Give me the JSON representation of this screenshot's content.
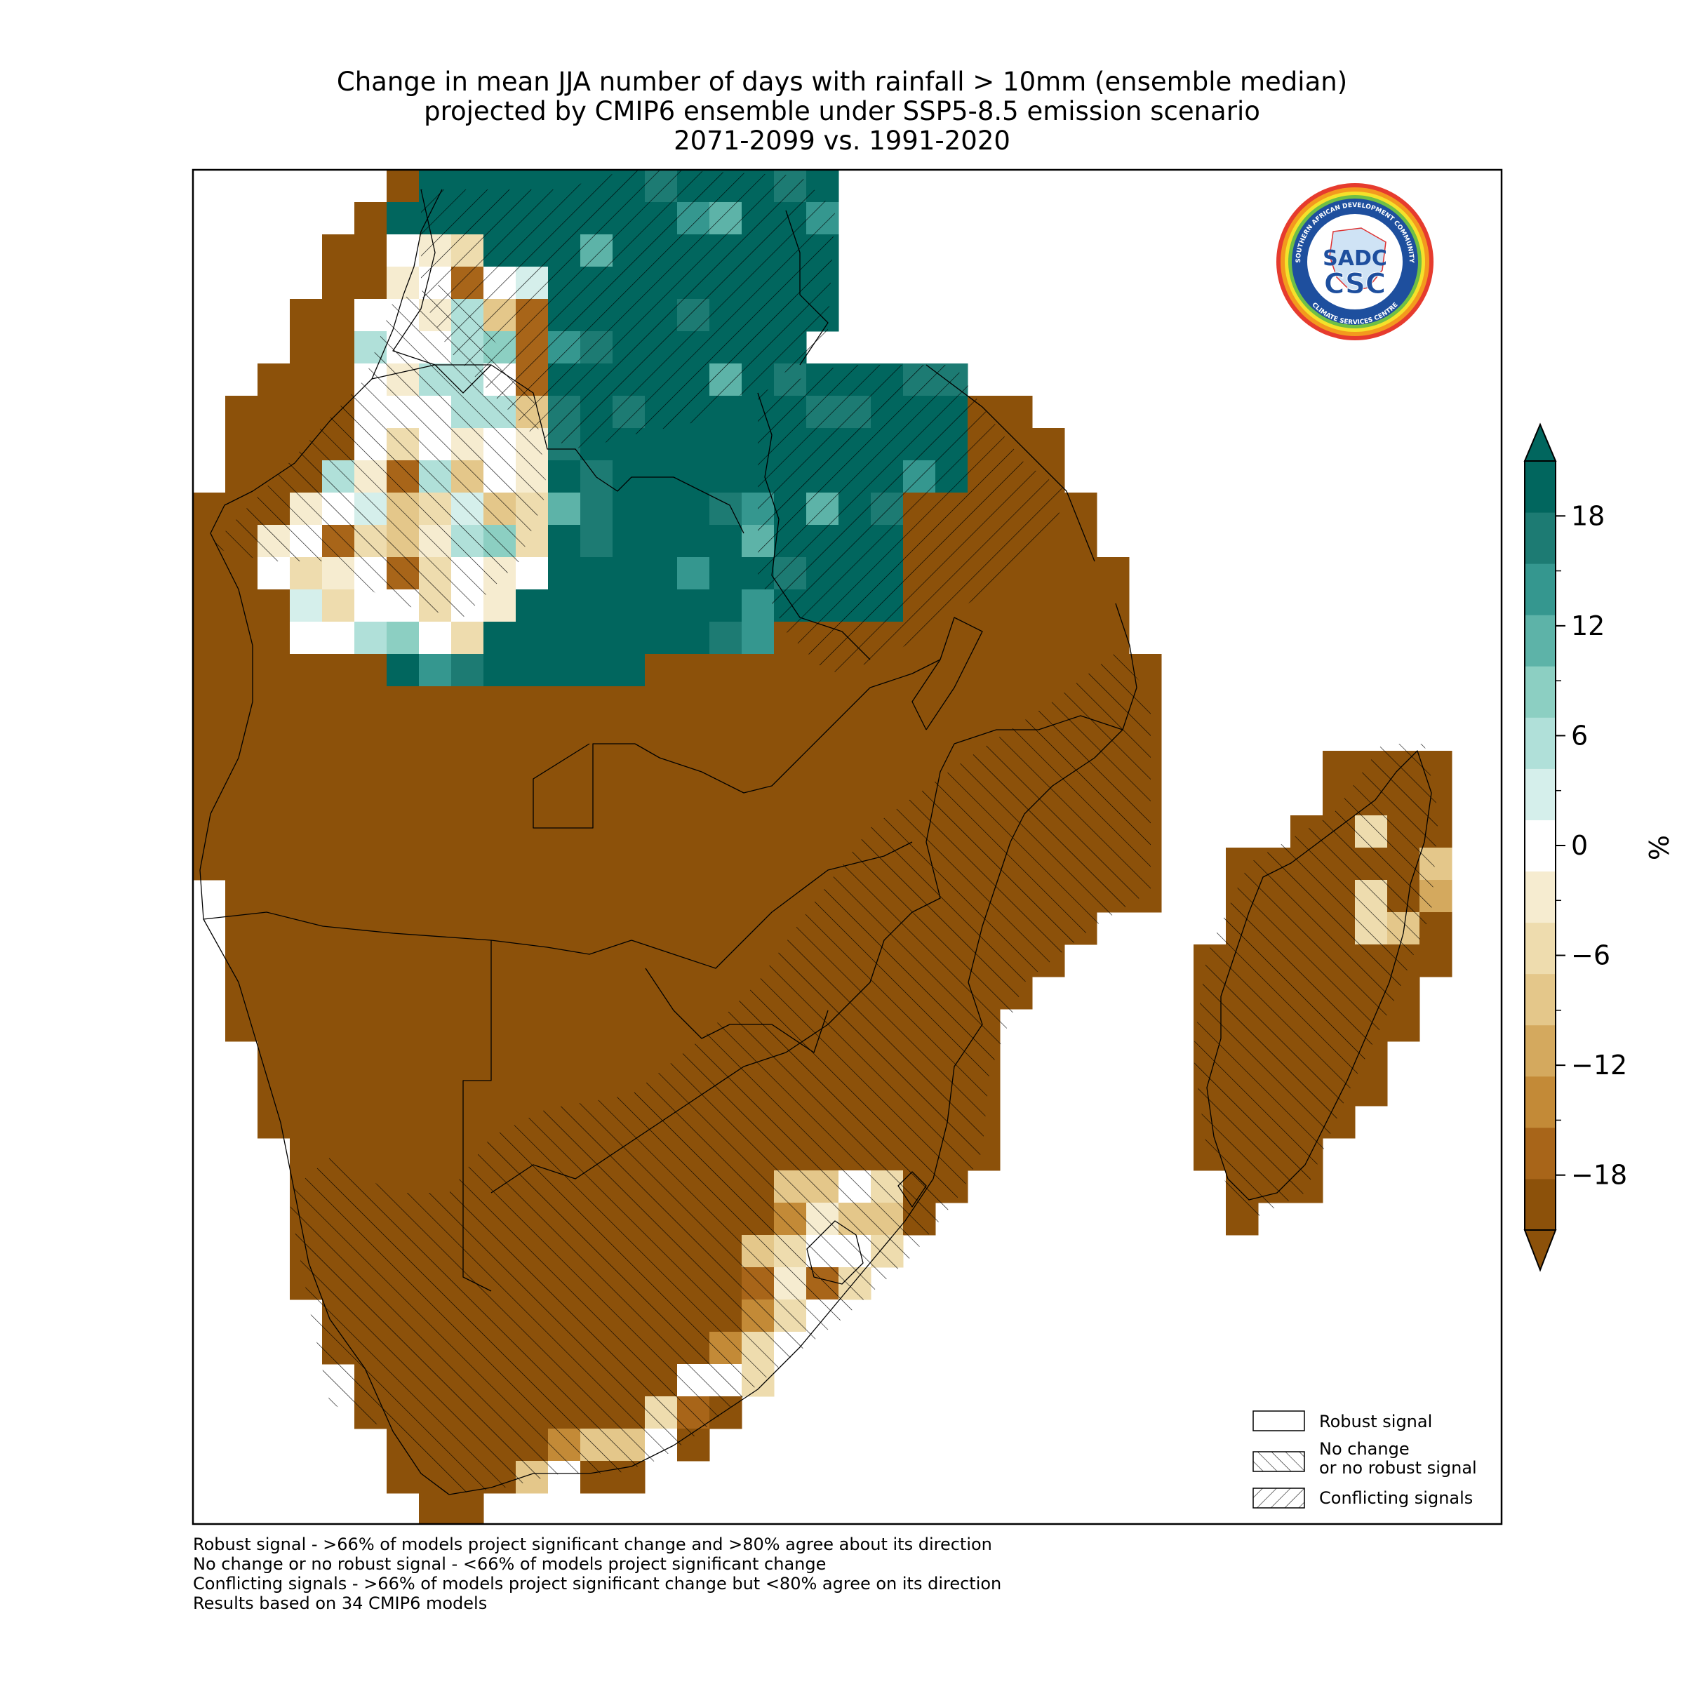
{
  "title_lines": [
    "Change in mean JJA number of days with rainfall > 10mm (ensemble median)",
    "projected by CMIP6 ensemble under SSP5-8.5 emission scenario",
    "2071-2099 vs. 1991-2020"
  ],
  "colorbar": {
    "unit": "%",
    "ticks": [
      "18",
      "12",
      "6",
      "0",
      "−6",
      "−12",
      "−18"
    ],
    "tick_values": [
      18,
      12,
      6,
      0,
      -6,
      -12,
      -18
    ],
    "range": [
      -21,
      21
    ],
    "extend": "both",
    "colors": [
      "#8c510a",
      "#a86519",
      "#c38a37",
      "#d4a95e",
      "#e4c78a",
      "#eedcae",
      "#f6ecd0",
      "#ffffff",
      "#d5efeb",
      "#b0e0d9",
      "#8ccfc2",
      "#5db3a8",
      "#35978f",
      "#1d7b73",
      "#01665e"
    ],
    "minor_step": 3
  },
  "legend": {
    "items": [
      {
        "label_lines": [
          "Robust signal"
        ],
        "hatch": "none"
      },
      {
        "label_lines": [
          "No change",
          "or no robust signal"
        ],
        "hatch": "forward"
      },
      {
        "label_lines": [
          "Conflicting signals"
        ],
        "hatch": "back"
      }
    ]
  },
  "footnotes": [
    "Robust signal - >66% of models project significant change and >80% agree about its direction",
    "No change or no robust signal - <66% of models project significant change",
    "Conflicting signals - >66% of models project significant change but <80% agree on its direction",
    "Results based on 34 CMIP6 models"
  ],
  "logo": {
    "center_text": "SADC",
    "bottom_text": "CSC",
    "ring_top": "SOUTHERN AFRICAN DEVELOPMENT COMMUNITY",
    "ring_bottom": "CLIMATE SERVICES CENTRE"
  }
}
